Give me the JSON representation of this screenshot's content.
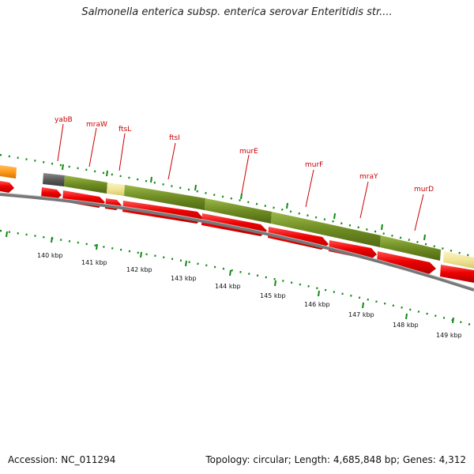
{
  "title": "Salmonella enterica subsp. enterica serovar Enteritidis str....",
  "footer": {
    "accession": "Accession: NC_011294",
    "summary": "Topology: circular; Length: 4,685,848 bp; Genes: 4,312"
  },
  "colors": {
    "gene_red": "#ee0000",
    "gene_green": "#6e8c22",
    "gene_grey": "#5a5a5a",
    "gene_yellow": "#f1e598",
    "gene_orange": "#ff9a1a",
    "backbone": "#777777",
    "tick_green": "#118811",
    "label_red": "#cc0000"
  },
  "gene_labels": [
    "yabB",
    "mraW",
    "ftsL",
    "ftsI",
    "murE",
    "murF",
    "mraY",
    "murD"
  ],
  "kbp_labels": [
    "140 kbp",
    "141 kbp",
    "142 kbp",
    "143 kbp",
    "144 kbp",
    "145 kbp",
    "146 kbp",
    "147 kbp",
    "148 kbp",
    "149 kbp"
  ]
}
